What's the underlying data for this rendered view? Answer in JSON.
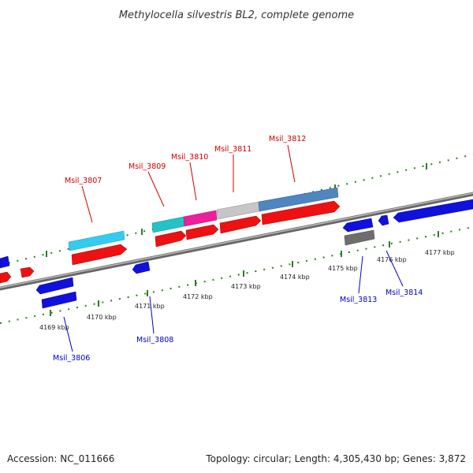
{
  "title": "Methylocella silvestris BL2, complete genome",
  "footer": {
    "accession": "Accession: NC_011666",
    "summary": "Topology: circular; Length: 4,305,430 bp; Genes: 3,872"
  },
  "colors": {
    "backbone": "#888888",
    "tick": "#2a7d1f",
    "forward_cds": "#ee1111",
    "reverse_cds": "#1111dd",
    "label_forward": "#cc0000",
    "label_reverse": "#0000cc"
  },
  "scale": {
    "ticks": [
      {
        "label": "4169 kbp"
      },
      {
        "label": "4170 kbp"
      },
      {
        "label": "4171 kbp"
      },
      {
        "label": "4172 kbp"
      },
      {
        "label": "4173 kbp"
      },
      {
        "label": "4174 kbp"
      },
      {
        "label": "4175 kbp"
      },
      {
        "label": "4176 kbp"
      },
      {
        "label": "4177 kbp"
      }
    ]
  },
  "genes_forward": [
    {
      "label": "Msil_3807"
    },
    {
      "label": "Msil_3809"
    },
    {
      "label": "Msil_3810"
    },
    {
      "label": "Msil_3811"
    },
    {
      "label": "Msil_3812"
    }
  ],
  "genes_reverse": [
    {
      "label": "Msil_3806"
    },
    {
      "label": "Msil_3808"
    },
    {
      "label": "Msil_3813"
    },
    {
      "label": "Msil_3814"
    }
  ]
}
